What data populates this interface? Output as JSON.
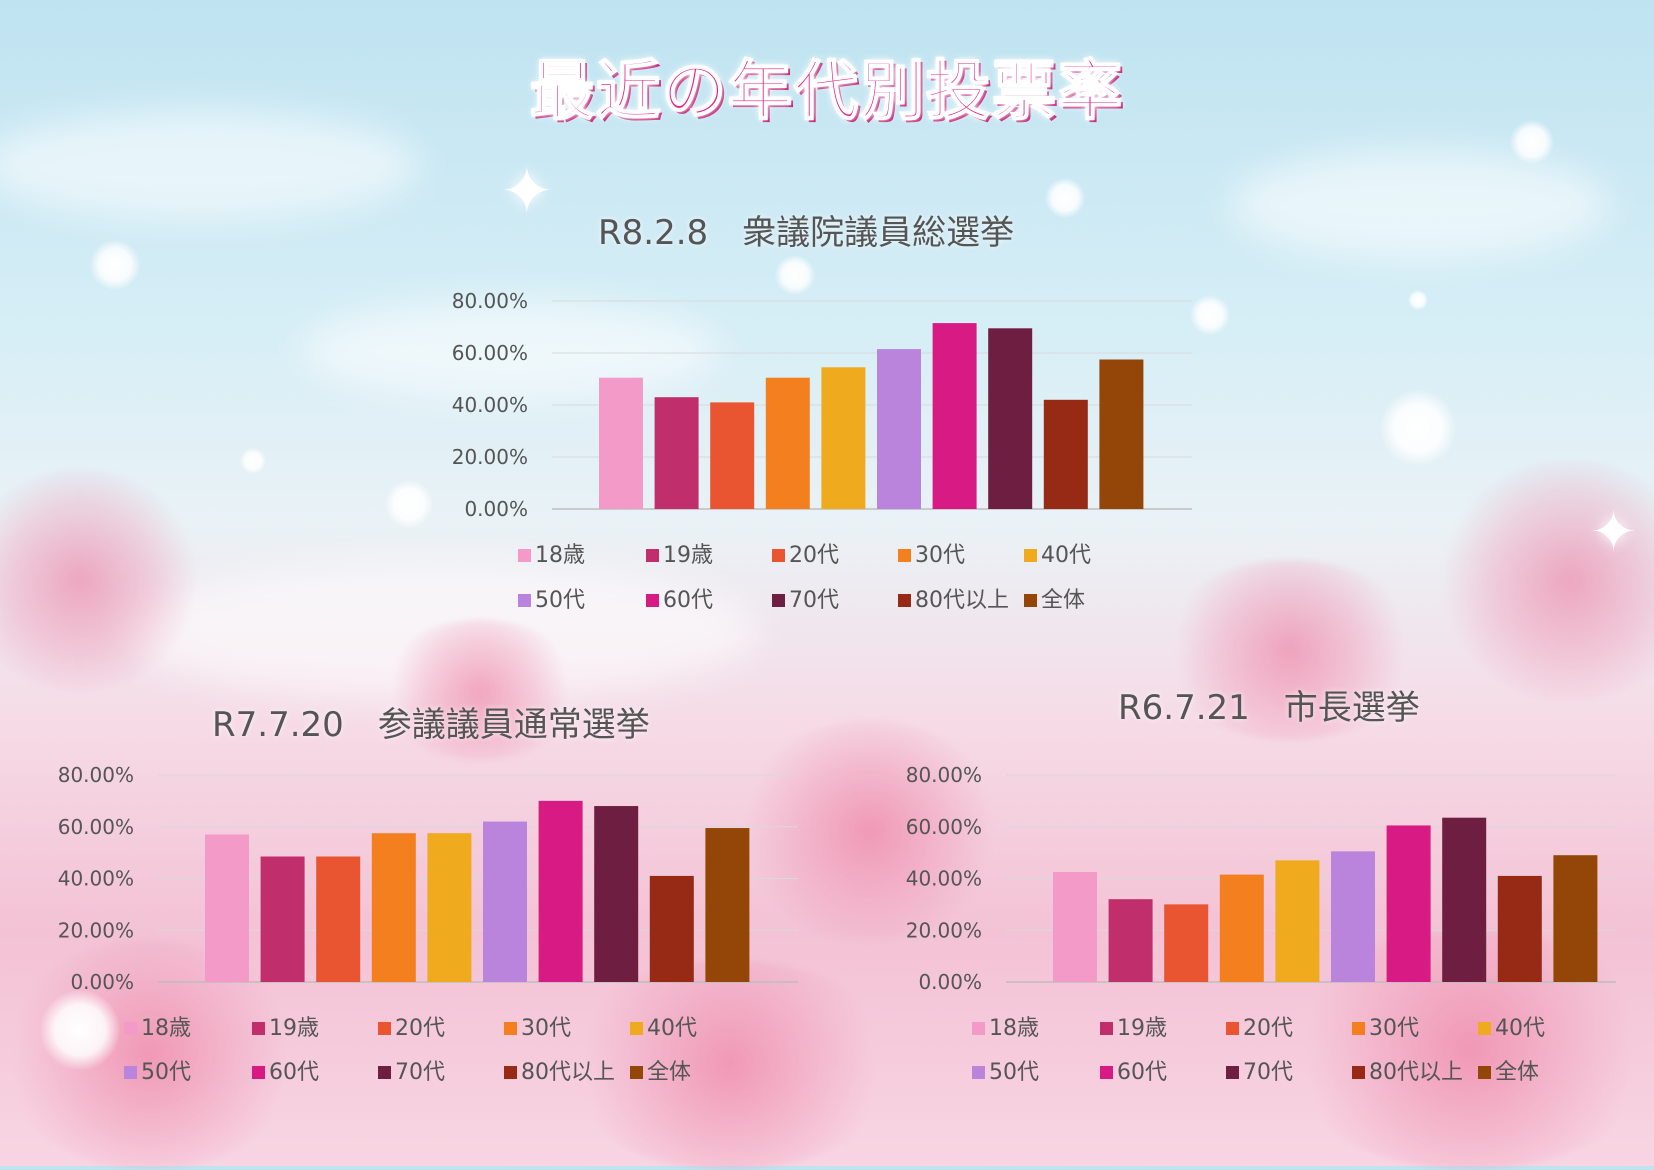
{
  "main_title": "最近の年代別投票率",
  "colors": {
    "18歳": "#f49ac8",
    "19歳": "#c02f6b",
    "20代": "#e85530",
    "30代": "#f47f1f",
    "40代": "#f0aa1e",
    "50代": "#bb84dc",
    "60代": "#d81b84",
    "70代": "#6e1e40",
    "80代以上": "#962a14",
    "全体": "#934608"
  },
  "chart_data": [
    {
      "type": "bar",
      "title": "R8.2.8　衆議院議員総選挙",
      "categories": [
        "18歳",
        "19歳",
        "20代",
        "30代",
        "40代",
        "50代",
        "60代",
        "70代",
        "80代以上",
        "全体"
      ],
      "values": [
        50.5,
        43.0,
        41.0,
        50.5,
        54.5,
        61.5,
        71.5,
        69.5,
        42.0,
        57.5
      ],
      "y_ticks": [
        "0.00%",
        "20.00%",
        "40.00%",
        "60.00%",
        "80.00%"
      ],
      "ylim": [
        0,
        80
      ],
      "legend": [
        "18歳",
        "19歳",
        "20代",
        "30代",
        "40代",
        "50代",
        "60代",
        "70代",
        "80代以上",
        "全体"
      ],
      "legend_position": "bottom",
      "grid": true
    },
    {
      "type": "bar",
      "title": "R7.7.20　参議議員通常選挙",
      "categories": [
        "18歳",
        "19歳",
        "20代",
        "30代",
        "40代",
        "50代",
        "60代",
        "70代",
        "80代以上",
        "全体"
      ],
      "values": [
        57.0,
        48.5,
        48.5,
        57.5,
        57.5,
        62.0,
        70.0,
        68.0,
        41.0,
        59.5
      ],
      "y_ticks": [
        "0.00%",
        "20.00%",
        "40.00%",
        "60.00%",
        "80.00%"
      ],
      "ylim": [
        0,
        80
      ],
      "legend": [
        "18歳",
        "19歳",
        "20代",
        "30代",
        "40代",
        "50代",
        "60代",
        "70代",
        "80代以上",
        "全体"
      ],
      "legend_position": "bottom",
      "grid": true
    },
    {
      "type": "bar",
      "title": "R6.7.21　市長選挙",
      "categories": [
        "18歳",
        "19歳",
        "20代",
        "30代",
        "40代",
        "50代",
        "60代",
        "70代",
        "80代以上",
        "全体"
      ],
      "values": [
        42.5,
        32.0,
        30.0,
        41.5,
        47.0,
        50.5,
        60.5,
        63.5,
        41.0,
        49.0
      ],
      "y_ticks": [
        "0.00%",
        "20.00%",
        "40.00%",
        "60.00%",
        "80.00%"
      ],
      "ylim": [
        0,
        80
      ],
      "legend": [
        "18歳",
        "19歳",
        "20代",
        "30代",
        "40代",
        "50代",
        "60代",
        "70代",
        "80代以上",
        "全体"
      ],
      "legend_position": "bottom",
      "grid": true
    }
  ]
}
